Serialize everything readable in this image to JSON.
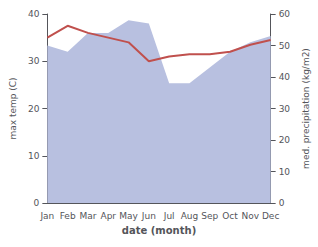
{
  "chart_data": {
    "type": "line",
    "xlabel": "date (month)",
    "ylabel": "max temp (C)",
    "y2label": "med. precipitation (kg/m2)",
    "categories": [
      "Jan",
      "Feb",
      "Mar",
      "Apr",
      "May",
      "Jun",
      "Jul",
      "Aug",
      "Sep",
      "Oct",
      "Nov",
      "Dec"
    ],
    "series": [
      {
        "type": "area",
        "color": "#b8c0e0",
        "axis": "y2",
        "values": [
          50,
          48,
          54,
          54,
          58,
          57,
          38,
          38,
          43,
          48,
          51,
          53
        ]
      },
      {
        "type": "line",
        "color": "#c0504d",
        "values": [
          35,
          37.5,
          36,
          35,
          34,
          30,
          31,
          31.5,
          31.5,
          32,
          33.5,
          34.5
        ]
      }
    ],
    "ylim": [
      0,
      40
    ],
    "yticks": [
      0,
      10,
      20,
      30,
      40
    ],
    "y2lim": [
      0,
      60
    ],
    "y2ticks": [
      0,
      10,
      20,
      30,
      40,
      50,
      60
    ],
    "grid": false
  }
}
